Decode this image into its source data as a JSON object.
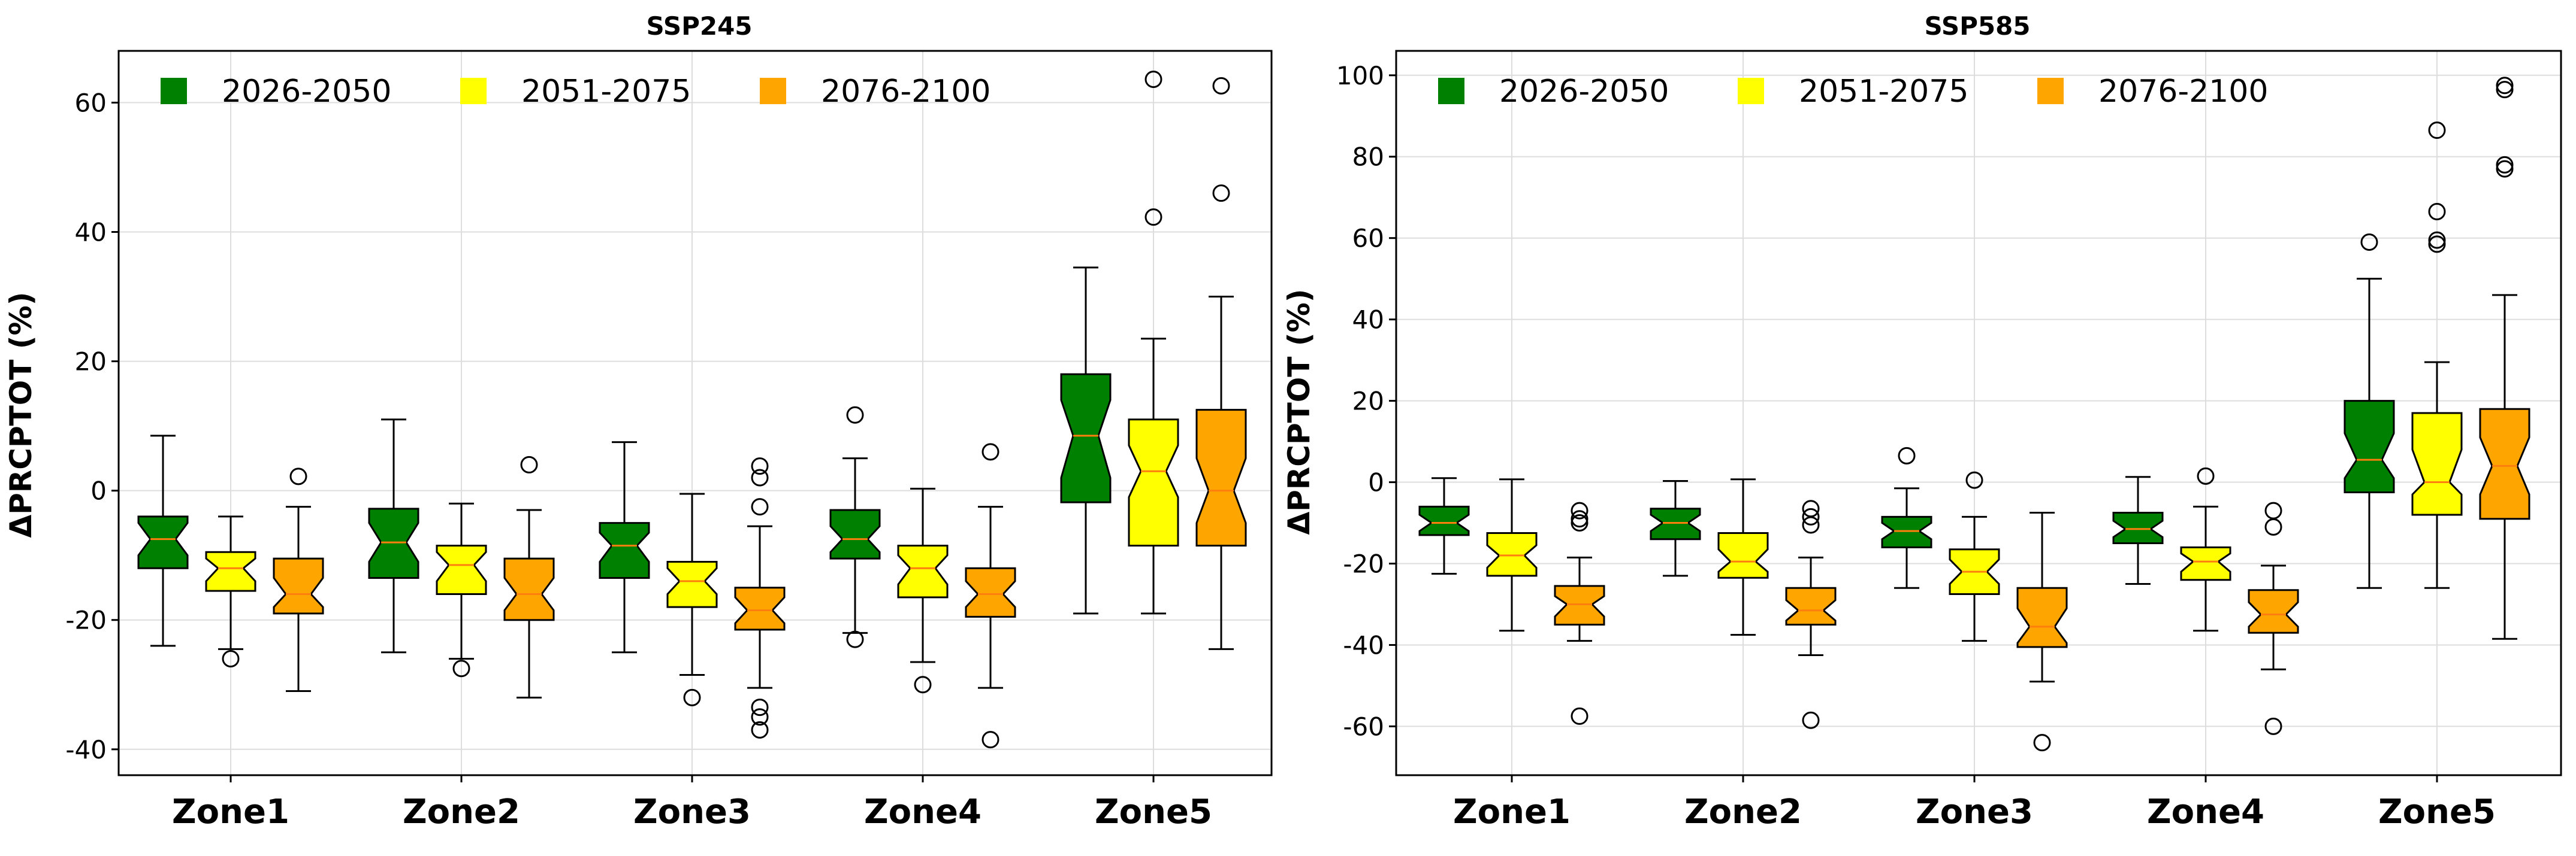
{
  "figure": {
    "ylabel": "ΔPRCPTOT (%)"
  },
  "legend": [
    {
      "label": "2026-2050",
      "color": "#008000"
    },
    {
      "label": "2051-2075",
      "color": "#ffff00"
    },
    {
      "label": "2076-2100",
      "color": "#ffa500"
    }
  ],
  "chart_data": [
    {
      "type": "boxplot",
      "title": "SSP245",
      "xlabel": "",
      "ylabel": "ΔPRCPTOT (%)",
      "ylim": [
        -44,
        68
      ],
      "yticks": [
        -40,
        -20,
        0,
        20,
        40,
        60
      ],
      "grid": true,
      "legend_position": "top-left",
      "categories": [
        "Zone1",
        "Zone2",
        "Zone3",
        "Zone4",
        "Zone5"
      ],
      "series": [
        {
          "name": "2026-2050",
          "color": "#008000",
          "boxes": [
            {
              "whisker_low": -24,
              "q1": -12,
              "median": -7.5,
              "q3": -4,
              "whisker_high": 8.5,
              "notch_low": -10,
              "notch_high": -5,
              "outliers": []
            },
            {
              "whisker_low": -25,
              "q1": -13.5,
              "median": -8,
              "q3": -2.8,
              "whisker_high": 11,
              "notch_low": -11,
              "notch_high": -5,
              "outliers": []
            },
            {
              "whisker_low": -25,
              "q1": -13.5,
              "median": -8.5,
              "q3": -5,
              "whisker_high": 7.5,
              "notch_low": -11,
              "notch_high": -6.5,
              "outliers": []
            },
            {
              "whisker_low": -22,
              "q1": -10.5,
              "median": -7.5,
              "q3": -3,
              "whisker_high": 5,
              "notch_low": -9.5,
              "notch_high": -5.5,
              "outliers": [
                -23,
                11.7
              ]
            },
            {
              "whisker_low": -19,
              "q1": -1.8,
              "median": 8.5,
              "q3": 18,
              "whisker_high": 34.5,
              "notch_low": 2,
              "notch_high": 14,
              "outliers": []
            }
          ]
        },
        {
          "name": "2051-2075",
          "color": "#ffff00",
          "boxes": [
            {
              "whisker_low": -24.5,
              "q1": -15.5,
              "median": -12,
              "q3": -9.5,
              "whisker_high": -4,
              "notch_low": -14,
              "notch_high": -10.5,
              "outliers": [
                -26
              ]
            },
            {
              "whisker_low": -26,
              "q1": -16,
              "median": -11.5,
              "q3": -8.5,
              "whisker_high": -2,
              "notch_low": -14,
              "notch_high": -9.5,
              "outliers": [
                -27.5
              ]
            },
            {
              "whisker_low": -28.5,
              "q1": -18,
              "median": -14,
              "q3": -11,
              "whisker_high": -0.5,
              "notch_low": -16,
              "notch_high": -12,
              "outliers": [
                -32
              ]
            },
            {
              "whisker_low": -26.5,
              "q1": -16.5,
              "median": -12,
              "q3": -8.5,
              "whisker_high": 0.3,
              "notch_low": -14.5,
              "notch_high": -10,
              "outliers": [
                -30
              ]
            },
            {
              "whisker_low": -19,
              "q1": -8.5,
              "median": 3,
              "q3": 11,
              "whisker_high": 23.5,
              "notch_low": -1,
              "notch_high": 7,
              "outliers": [
                42.3,
                63.6
              ]
            }
          ]
        },
        {
          "name": "2076-2100",
          "color": "#ffa500",
          "boxes": [
            {
              "whisker_low": -31,
              "q1": -19,
              "median": -16,
              "q3": -10.5,
              "whisker_high": -2.5,
              "notch_low": -18,
              "notch_high": -13.5,
              "outliers": [
                2.2
              ]
            },
            {
              "whisker_low": -32,
              "q1": -20,
              "median": -16,
              "q3": -10.5,
              "whisker_high": -3,
              "notch_low": -18.5,
              "notch_high": -13.5,
              "outliers": [
                4
              ]
            },
            {
              "whisker_low": -30.5,
              "q1": -21.5,
              "median": -18.5,
              "q3": -15,
              "whisker_high": -5.5,
              "notch_low": -20.5,
              "notch_high": -16.5,
              "outliers": [
                -37,
                -35,
                -33.5,
                -2.5,
                2,
                3.8
              ]
            },
            {
              "whisker_low": -30.5,
              "q1": -19.5,
              "median": -16,
              "q3": -12,
              "whisker_high": -2.5,
              "notch_low": -18,
              "notch_high": -14,
              "outliers": [
                -38.5,
                6
              ]
            },
            {
              "whisker_low": -24.5,
              "q1": -8.5,
              "median": 0,
              "q3": 12.5,
              "whisker_high": 30,
              "notch_low": -5,
              "notch_high": 5,
              "outliers": [
                46,
                62.6
              ]
            }
          ]
        }
      ]
    },
    {
      "type": "boxplot",
      "title": "SSP585",
      "xlabel": "",
      "ylabel": "ΔPRCPTOT (%)",
      "ylim": [
        -72,
        106
      ],
      "yticks": [
        -60,
        -40,
        -20,
        0,
        20,
        40,
        60,
        80,
        100
      ],
      "grid": true,
      "legend_position": "top-left",
      "categories": [
        "Zone1",
        "Zone2",
        "Zone3",
        "Zone4",
        "Zone5"
      ],
      "series": [
        {
          "name": "2026-2050",
          "color": "#008000",
          "boxes": [
            {
              "whisker_low": -22.5,
              "q1": -13,
              "median": -10,
              "q3": -6,
              "whisker_high": 1,
              "notch_low": -12,
              "notch_high": -8,
              "outliers": []
            },
            {
              "whisker_low": -23,
              "q1": -14,
              "median": -10,
              "q3": -6.5,
              "whisker_high": 0.3,
              "notch_low": -12,
              "notch_high": -8,
              "outliers": []
            },
            {
              "whisker_low": -26,
              "q1": -16,
              "median": -12,
              "q3": -8.5,
              "whisker_high": -1.5,
              "notch_low": -14,
              "notch_high": -10,
              "outliers": [
                6.5
              ]
            },
            {
              "whisker_low": -25,
              "q1": -15,
              "median": -11.5,
              "q3": -7.5,
              "whisker_high": 1.3,
              "notch_low": -13.5,
              "notch_high": -9.5,
              "outliers": []
            },
            {
              "whisker_low": -26,
              "q1": -2.5,
              "median": 5.5,
              "q3": 20,
              "whisker_high": 50,
              "notch_low": 1,
              "notch_high": 12,
              "outliers": [
                59
              ]
            }
          ]
        },
        {
          "name": "2051-2075",
          "color": "#ffff00",
          "boxes": [
            {
              "whisker_low": -36.5,
              "q1": -23,
              "median": -18,
              "q3": -12.5,
              "whisker_high": 0.7,
              "notch_low": -21,
              "notch_high": -15.5,
              "outliers": []
            },
            {
              "whisker_low": -37.5,
              "q1": -23.5,
              "median": -19.5,
              "q3": -12.5,
              "whisker_high": 0.7,
              "notch_low": -22,
              "notch_high": -16.5,
              "outliers": []
            },
            {
              "whisker_low": -39,
              "q1": -27.5,
              "median": -22,
              "q3": -16.5,
              "whisker_high": -8.5,
              "notch_low": -25,
              "notch_high": -19,
              "outliers": [
                0.5
              ]
            },
            {
              "whisker_low": -36.5,
              "q1": -24,
              "median": -19.5,
              "q3": -16,
              "whisker_high": -6,
              "notch_low": -22,
              "notch_high": -17.5,
              "outliers": [
                1.5
              ]
            },
            {
              "whisker_low": -26,
              "q1": -8,
              "median": 0,
              "q3": 17,
              "whisker_high": 29.5,
              "notch_low": -3,
              "notch_high": 8,
              "outliers": [
                58.5,
                59.5,
                66.5,
                86.5
              ]
            }
          ]
        },
        {
          "name": "2076-2100",
          "color": "#ffa500",
          "boxes": [
            {
              "whisker_low": -39,
              "q1": -35,
              "median": -30,
              "q3": -25.5,
              "whisker_high": -18.5,
              "notch_low": -33,
              "notch_high": -28,
              "outliers": [
                -57.5,
                -10,
                -9,
                -7
              ]
            },
            {
              "whisker_low": -42.5,
              "q1": -35,
              "median": -31.5,
              "q3": -26,
              "whisker_high": -18.5,
              "notch_low": -34,
              "notch_high": -29,
              "outliers": [
                -58.5,
                -10.5,
                -8.5,
                -6.5
              ]
            },
            {
              "whisker_low": -49,
              "q1": -40.5,
              "median": -35.5,
              "q3": -26,
              "whisker_high": -7.5,
              "notch_low": -39.5,
              "notch_high": -31,
              "outliers": [
                -64
              ]
            },
            {
              "whisker_low": -46,
              "q1": -37,
              "median": -32.5,
              "q3": -26.5,
              "whisker_high": -20.5,
              "notch_low": -35.5,
              "notch_high": -29.5,
              "outliers": [
                -60,
                -11,
                -7
              ]
            },
            {
              "whisker_low": -38.5,
              "q1": -9,
              "median": 4,
              "q3": 18,
              "whisker_high": 46,
              "notch_low": -3,
              "notch_high": 11,
              "outliers": [
                77,
                78,
                96.5,
                97.5
              ]
            }
          ]
        }
      ]
    }
  ]
}
